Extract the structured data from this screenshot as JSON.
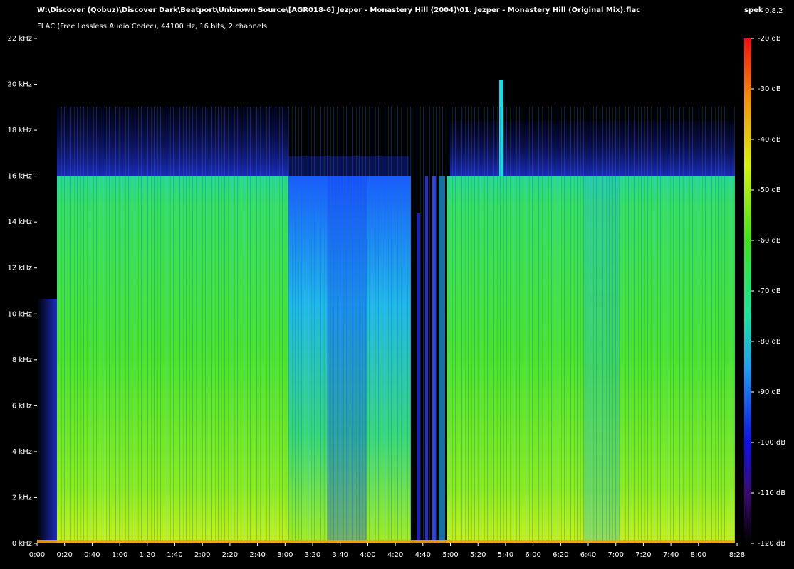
{
  "chart_data": {
    "type": "spectrogram",
    "title": "W:\\Discover (Qobuz)\\Discover Dark\\Beatport\\Unknown Source\\[AGR018-6] Jezper - Monastery Hill (2004)\\01. Jezper - Monastery Hill (Original Mix).flac",
    "subtitle": "FLAC (Free Lossless Audio Codec), 44100 Hz, 16 bits, 2 channels",
    "app_name": "spek",
    "app_version": "0.8.2",
    "xlim": [
      0,
      508
    ],
    "xticks": [
      {
        "value": 0,
        "label": "0:00"
      },
      {
        "value": 20,
        "label": "0:20"
      },
      {
        "value": 40,
        "label": "0:40"
      },
      {
        "value": 60,
        "label": "1:00"
      },
      {
        "value": 80,
        "label": "1:20"
      },
      {
        "value": 100,
        "label": "1:40"
      },
      {
        "value": 120,
        "label": "2:00"
      },
      {
        "value": 140,
        "label": "2:20"
      },
      {
        "value": 160,
        "label": "2:40"
      },
      {
        "value": 180,
        "label": "3:00"
      },
      {
        "value": 200,
        "label": "3:20"
      },
      {
        "value": 220,
        "label": "3:40"
      },
      {
        "value": 240,
        "label": "4:00"
      },
      {
        "value": 260,
        "label": "4:20"
      },
      {
        "value": 280,
        "label": "4:40"
      },
      {
        "value": 300,
        "label": "5:00"
      },
      {
        "value": 320,
        "label": "5:20"
      },
      {
        "value": 340,
        "label": "5:40"
      },
      {
        "value": 360,
        "label": "6:00"
      },
      {
        "value": 380,
        "label": "6:20"
      },
      {
        "value": 400,
        "label": "6:40"
      },
      {
        "value": 420,
        "label": "7:00"
      },
      {
        "value": 440,
        "label": "7:20"
      },
      {
        "value": 460,
        "label": "7:40"
      },
      {
        "value": 480,
        "label": "8:00"
      },
      {
        "value": 508,
        "label": "8:28"
      }
    ],
    "ylim": [
      0,
      22
    ],
    "yticks": [
      {
        "value": 0,
        "label": "0 kHz"
      },
      {
        "value": 2,
        "label": "2 kHz"
      },
      {
        "value": 4,
        "label": "4 kHz"
      },
      {
        "value": 6,
        "label": "6 kHz"
      },
      {
        "value": 8,
        "label": "8 kHz"
      },
      {
        "value": 10,
        "label": "10 kHz"
      },
      {
        "value": 12,
        "label": "12 kHz"
      },
      {
        "value": 14,
        "label": "14 kHz"
      },
      {
        "value": 16,
        "label": "16 kHz"
      },
      {
        "value": 18,
        "label": "18 kHz"
      },
      {
        "value": 20,
        "label": "20 kHz"
      },
      {
        "value": 22,
        "label": "22 kHz"
      }
    ],
    "zlim": [
      -120,
      -20
    ],
    "zticks": [
      {
        "value": -20,
        "label": "-20 dB"
      },
      {
        "value": -30,
        "label": "-30 dB"
      },
      {
        "value": -40,
        "label": "-40 dB"
      },
      {
        "value": -50,
        "label": "-50 dB"
      },
      {
        "value": -60,
        "label": "-60 dB"
      },
      {
        "value": -70,
        "label": "-70 dB"
      },
      {
        "value": -80,
        "label": "-80 dB"
      },
      {
        "value": -90,
        "label": "-90 dB"
      },
      {
        "value": -100,
        "label": "-100 dB"
      },
      {
        "value": -110,
        "label": "-110 dB"
      },
      {
        "value": -120,
        "label": "-120 dB"
      }
    ]
  }
}
